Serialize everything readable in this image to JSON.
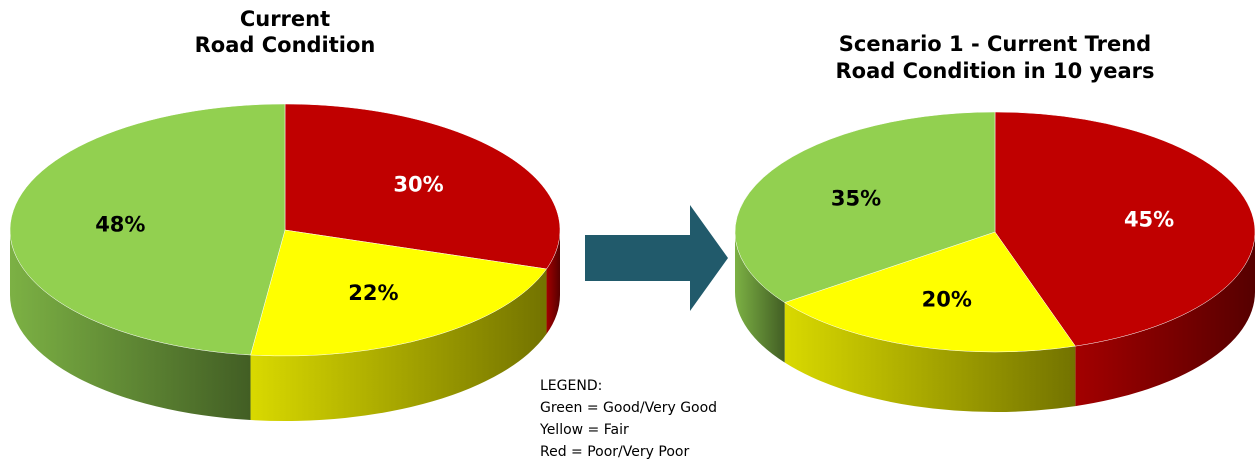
{
  "chart_data": [
    {
      "type": "pie",
      "title": [
        "Current",
        "Road Condition"
      ],
      "values": [
        30,
        22,
        48
      ],
      "value_labels": [
        "30%",
        "22%",
        "48%"
      ],
      "colors": [
        "#c00000",
        "#ffff00",
        "#92d050"
      ],
      "label_colors": [
        "#ffffff",
        "#000000",
        "#000000"
      ]
    },
    {
      "type": "pie",
      "title": [
        "Scenario 1 - Current Trend",
        "Road Condition in 10 years"
      ],
      "values": [
        45,
        20,
        35
      ],
      "value_labels": [
        "45%",
        "20%",
        "35%"
      ],
      "colors": [
        "#c00000",
        "#ffff00",
        "#92d050"
      ],
      "label_colors": [
        "#ffffff",
        "#000000",
        "#000000"
      ]
    }
  ],
  "legend": {
    "title": "LEGEND:",
    "lines": [
      "Green = Good/Very Good",
      "Yellow = Fair",
      "Red = Poor/Very Poor"
    ]
  }
}
